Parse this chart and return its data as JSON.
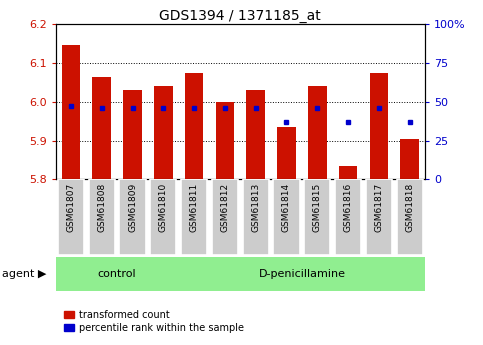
{
  "title": "GDS1394 / 1371185_at",
  "samples": [
    "GSM61807",
    "GSM61808",
    "GSM61809",
    "GSM61810",
    "GSM61811",
    "GSM61812",
    "GSM61813",
    "GSM61814",
    "GSM61815",
    "GSM61816",
    "GSM61817",
    "GSM61818"
  ],
  "transformed_count": [
    6.145,
    6.065,
    6.03,
    6.04,
    6.075,
    6.0,
    6.03,
    5.935,
    6.04,
    5.835,
    6.075,
    5.905
  ],
  "percentile_rank": [
    47,
    46,
    46,
    46,
    46,
    46,
    46,
    37,
    46,
    37,
    46,
    37
  ],
  "ymin": 5.8,
  "ymax": 6.2,
  "bar_color": "#CC1100",
  "dot_color": "#0000CC",
  "bg_color": "#FFFFFF",
  "tick_area_color": "#CCCCCC",
  "green_color": "#90EE90",
  "control_samples": 4,
  "control_label": "control",
  "treatment_label": "D-penicillamine",
  "agent_label": "agent",
  "legend_red": "transformed count",
  "legend_blue": "percentile rank within the sample",
  "left_tick_color": "#CC1100",
  "right_tick_color": "#0000CC",
  "title_fontsize": 10,
  "label_fontsize": 8,
  "tick_fontsize": 7,
  "sample_fontsize": 6.5,
  "bar_width": 0.6
}
